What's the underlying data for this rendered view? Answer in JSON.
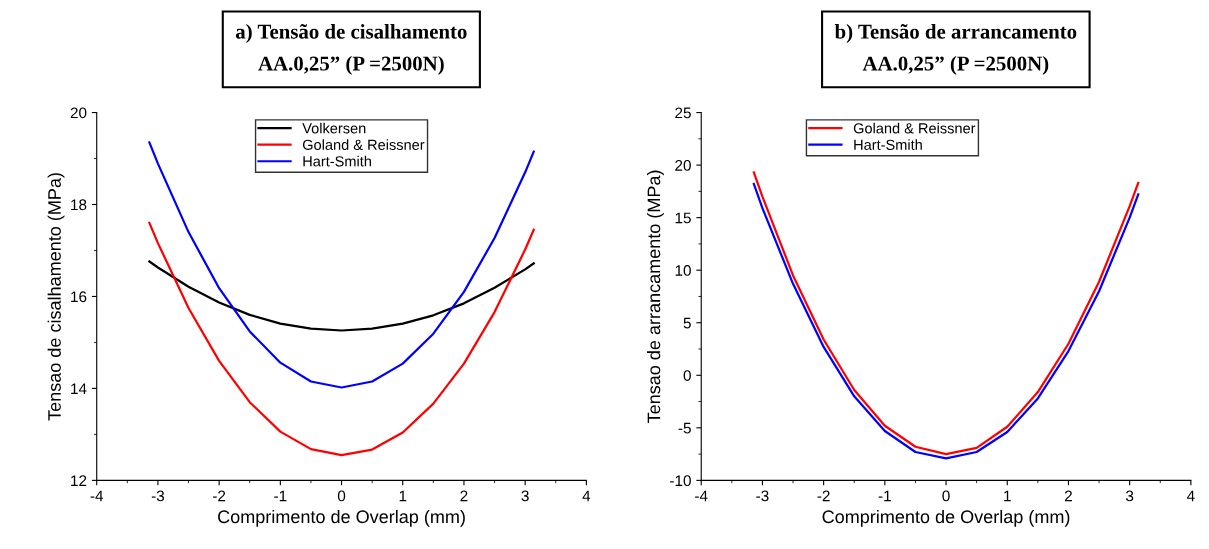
{
  "chart_data": [
    {
      "type": "line",
      "title": "a) Tensão de cisalhamento\nAA.0,25” (P =2500N)",
      "xlabel": "Comprimento de Overlap (mm)",
      "ylabel": "Tensao de cisalhamento (MPa)",
      "x": [
        -3.14,
        -3,
        -2.5,
        -2,
        -1.5,
        -1,
        -0.5,
        0,
        0.5,
        1,
        1.5,
        2,
        2.5,
        3,
        3.14
      ],
      "series": [
        {
          "name": "Volkersen",
          "color": "#000000",
          "values": [
            16.76,
            16.63,
            16.21,
            15.87,
            15.6,
            15.41,
            15.3,
            15.26,
            15.3,
            15.41,
            15.59,
            15.85,
            16.19,
            16.59,
            16.72
          ]
        },
        {
          "name": "Goland & Reissner",
          "color": "#ff0000",
          "values": [
            17.6,
            17.16,
            15.75,
            14.6,
            13.7,
            13.06,
            12.68,
            12.55,
            12.67,
            13.04,
            13.67,
            14.54,
            15.66,
            17.02,
            17.45
          ]
        },
        {
          "name": "Hart-Smith",
          "color": "#0000ff",
          "values": [
            19.35,
            18.89,
            17.4,
            16.18,
            15.24,
            14.56,
            14.15,
            14.02,
            14.15,
            14.54,
            15.19,
            16.1,
            17.27,
            18.7,
            19.15
          ]
        }
      ],
      "xlim": [
        -4,
        4
      ],
      "xticks": [
        -4,
        -3,
        -2,
        -1,
        0,
        1,
        2,
        3,
        4
      ],
      "ylim": [
        12,
        20
      ],
      "yticks": [
        12,
        14,
        16,
        18,
        20
      ],
      "grid": false,
      "legend": "top",
      "marker": "none",
      "line_style": "solid"
    },
    {
      "type": "line",
      "title": "b) Tensão de arrancamento\nAA.0,25” (P =2500N)",
      "xlabel": "Comprimento de Overlap (mm)",
      "ylabel": "Tensao de arrancamento (MPa)",
      "x": [
        -3.14,
        -3,
        -2.5,
        -2,
        -1.5,
        -1,
        -0.5,
        0,
        0.5,
        1,
        1.5,
        2,
        2.5,
        3,
        3.14
      ],
      "series": [
        {
          "name": "Goland & Reissner",
          "color": "#ff0000",
          "values": [
            19.3,
            17.0,
            9.5,
            3.4,
            -1.4,
            -4.8,
            -6.8,
            -7.5,
            -6.9,
            -4.9,
            -1.6,
            3.0,
            8.9,
            16.1,
            18.3
          ]
        },
        {
          "name": "Hart-Smith",
          "color": "#0000ff",
          "values": [
            18.2,
            15.9,
            8.7,
            2.7,
            -2.0,
            -5.3,
            -7.3,
            -7.9,
            -7.3,
            -5.4,
            -2.2,
            2.3,
            8.0,
            15.0,
            17.2
          ]
        }
      ],
      "xlim": [
        -4,
        4
      ],
      "xticks": [
        -4,
        -3,
        -2,
        -1,
        0,
        1,
        2,
        3,
        4
      ],
      "ylim": [
        -10,
        25
      ],
      "yticks": [
        -10,
        -5,
        0,
        5,
        10,
        15,
        20,
        25
      ],
      "grid": false,
      "legend": "top left",
      "marker": "none",
      "line_style": "solid"
    }
  ]
}
